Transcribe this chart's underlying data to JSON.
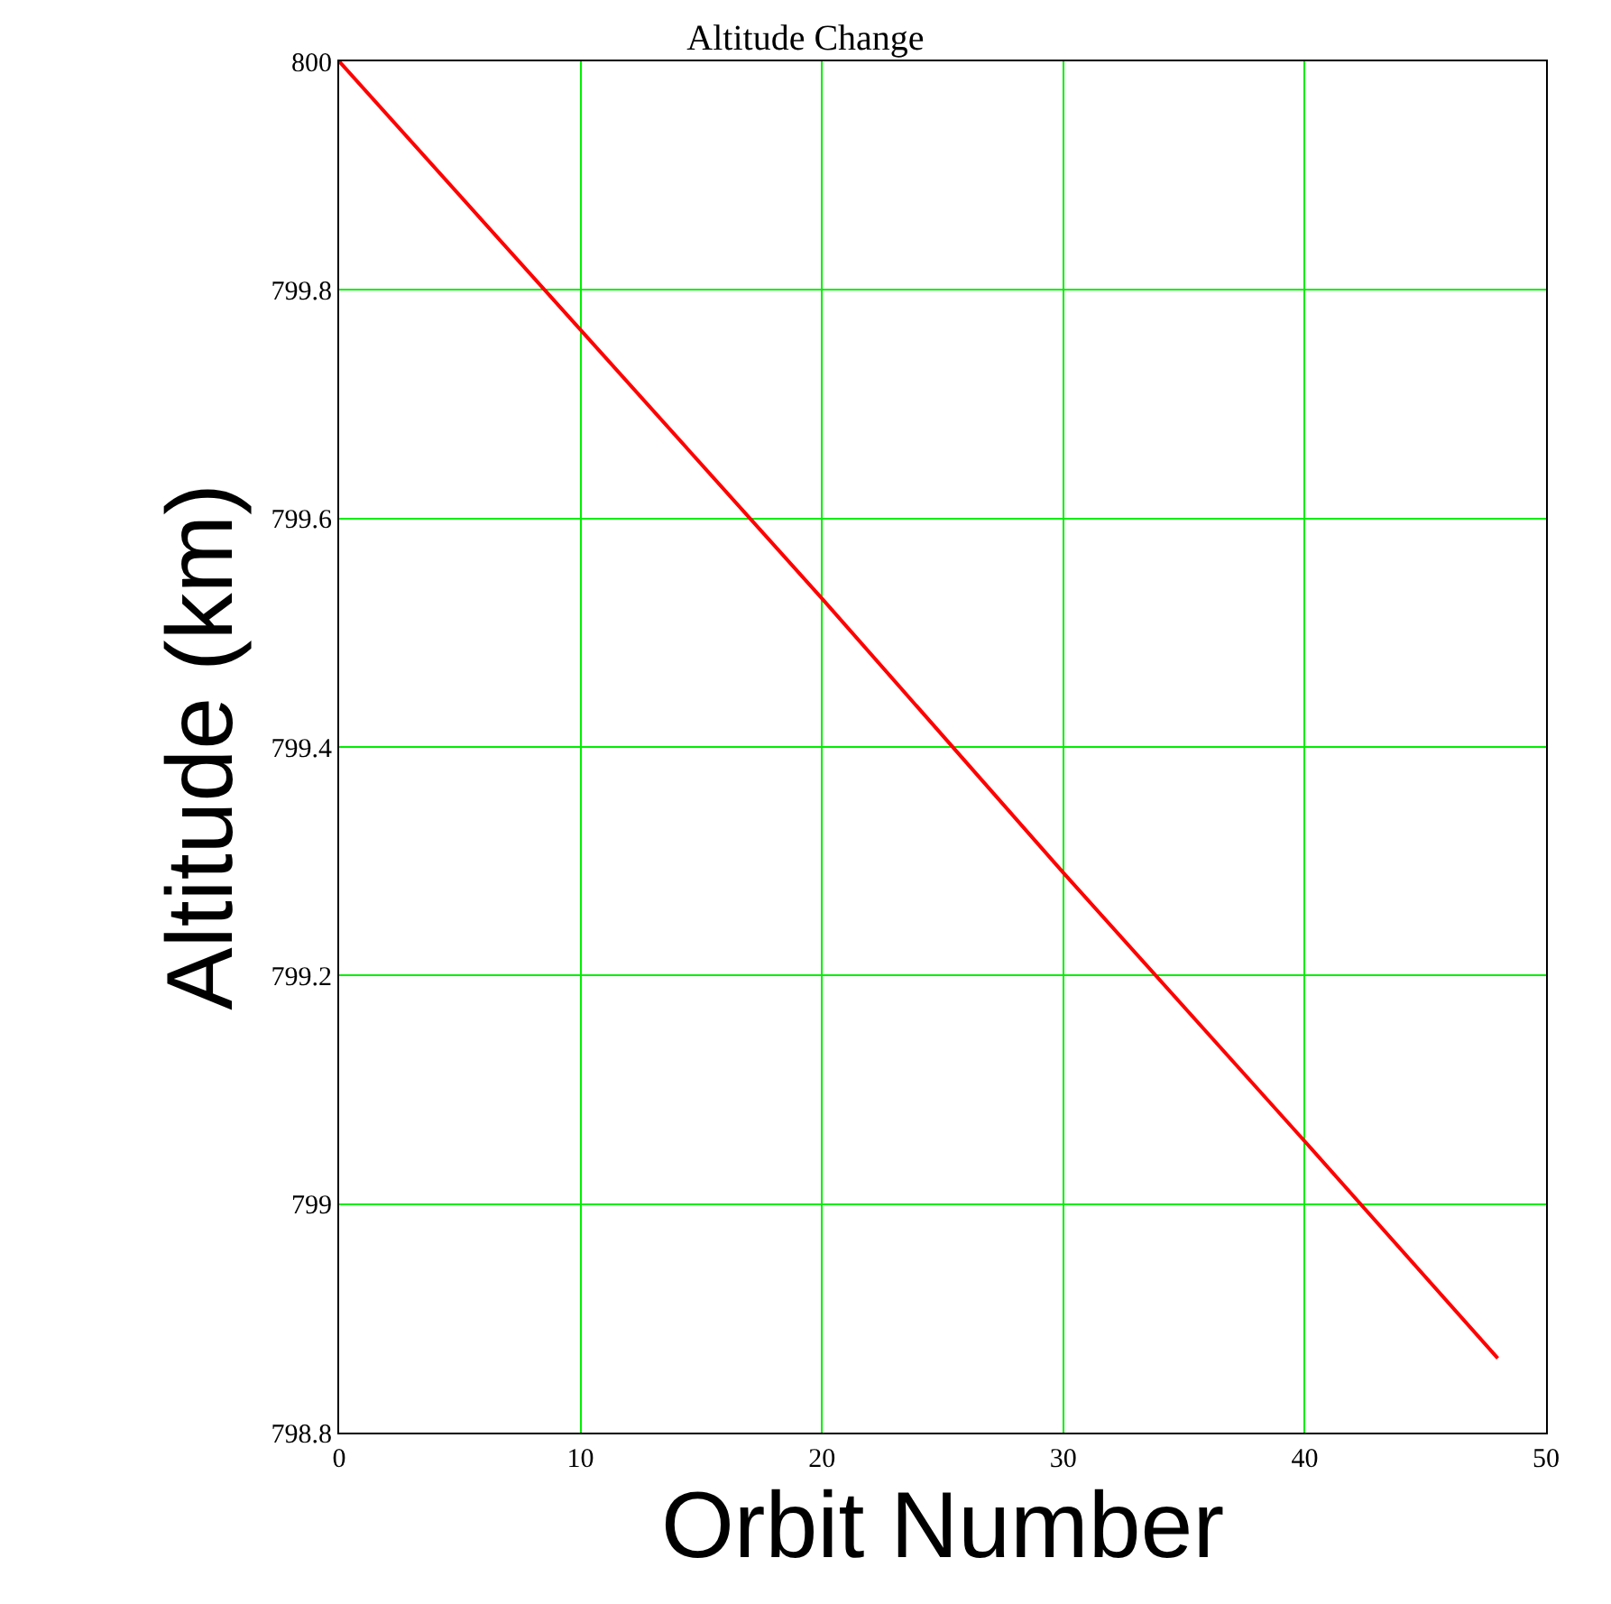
{
  "chart_data": {
    "type": "line",
    "title": "Altitude Change",
    "xlabel": "Orbit Number",
    "ylabel": "Altitude (km)",
    "x": [
      0,
      10,
      20,
      30,
      40,
      48
    ],
    "series": [
      {
        "color": "#ff0000",
        "values": [
          800,
          799.765,
          799.53,
          799.29,
          799.055,
          798.865
        ]
      }
    ],
    "xlim": [
      0,
      50
    ],
    "xticks": [
      0,
      10,
      20,
      30,
      40,
      50
    ],
    "ylim": [
      798.8,
      800
    ],
    "yticks": [
      798.8,
      799,
      799.2,
      799.4,
      799.6,
      799.8,
      800
    ],
    "grid": true,
    "marker": "none",
    "line_style": "solid"
  }
}
